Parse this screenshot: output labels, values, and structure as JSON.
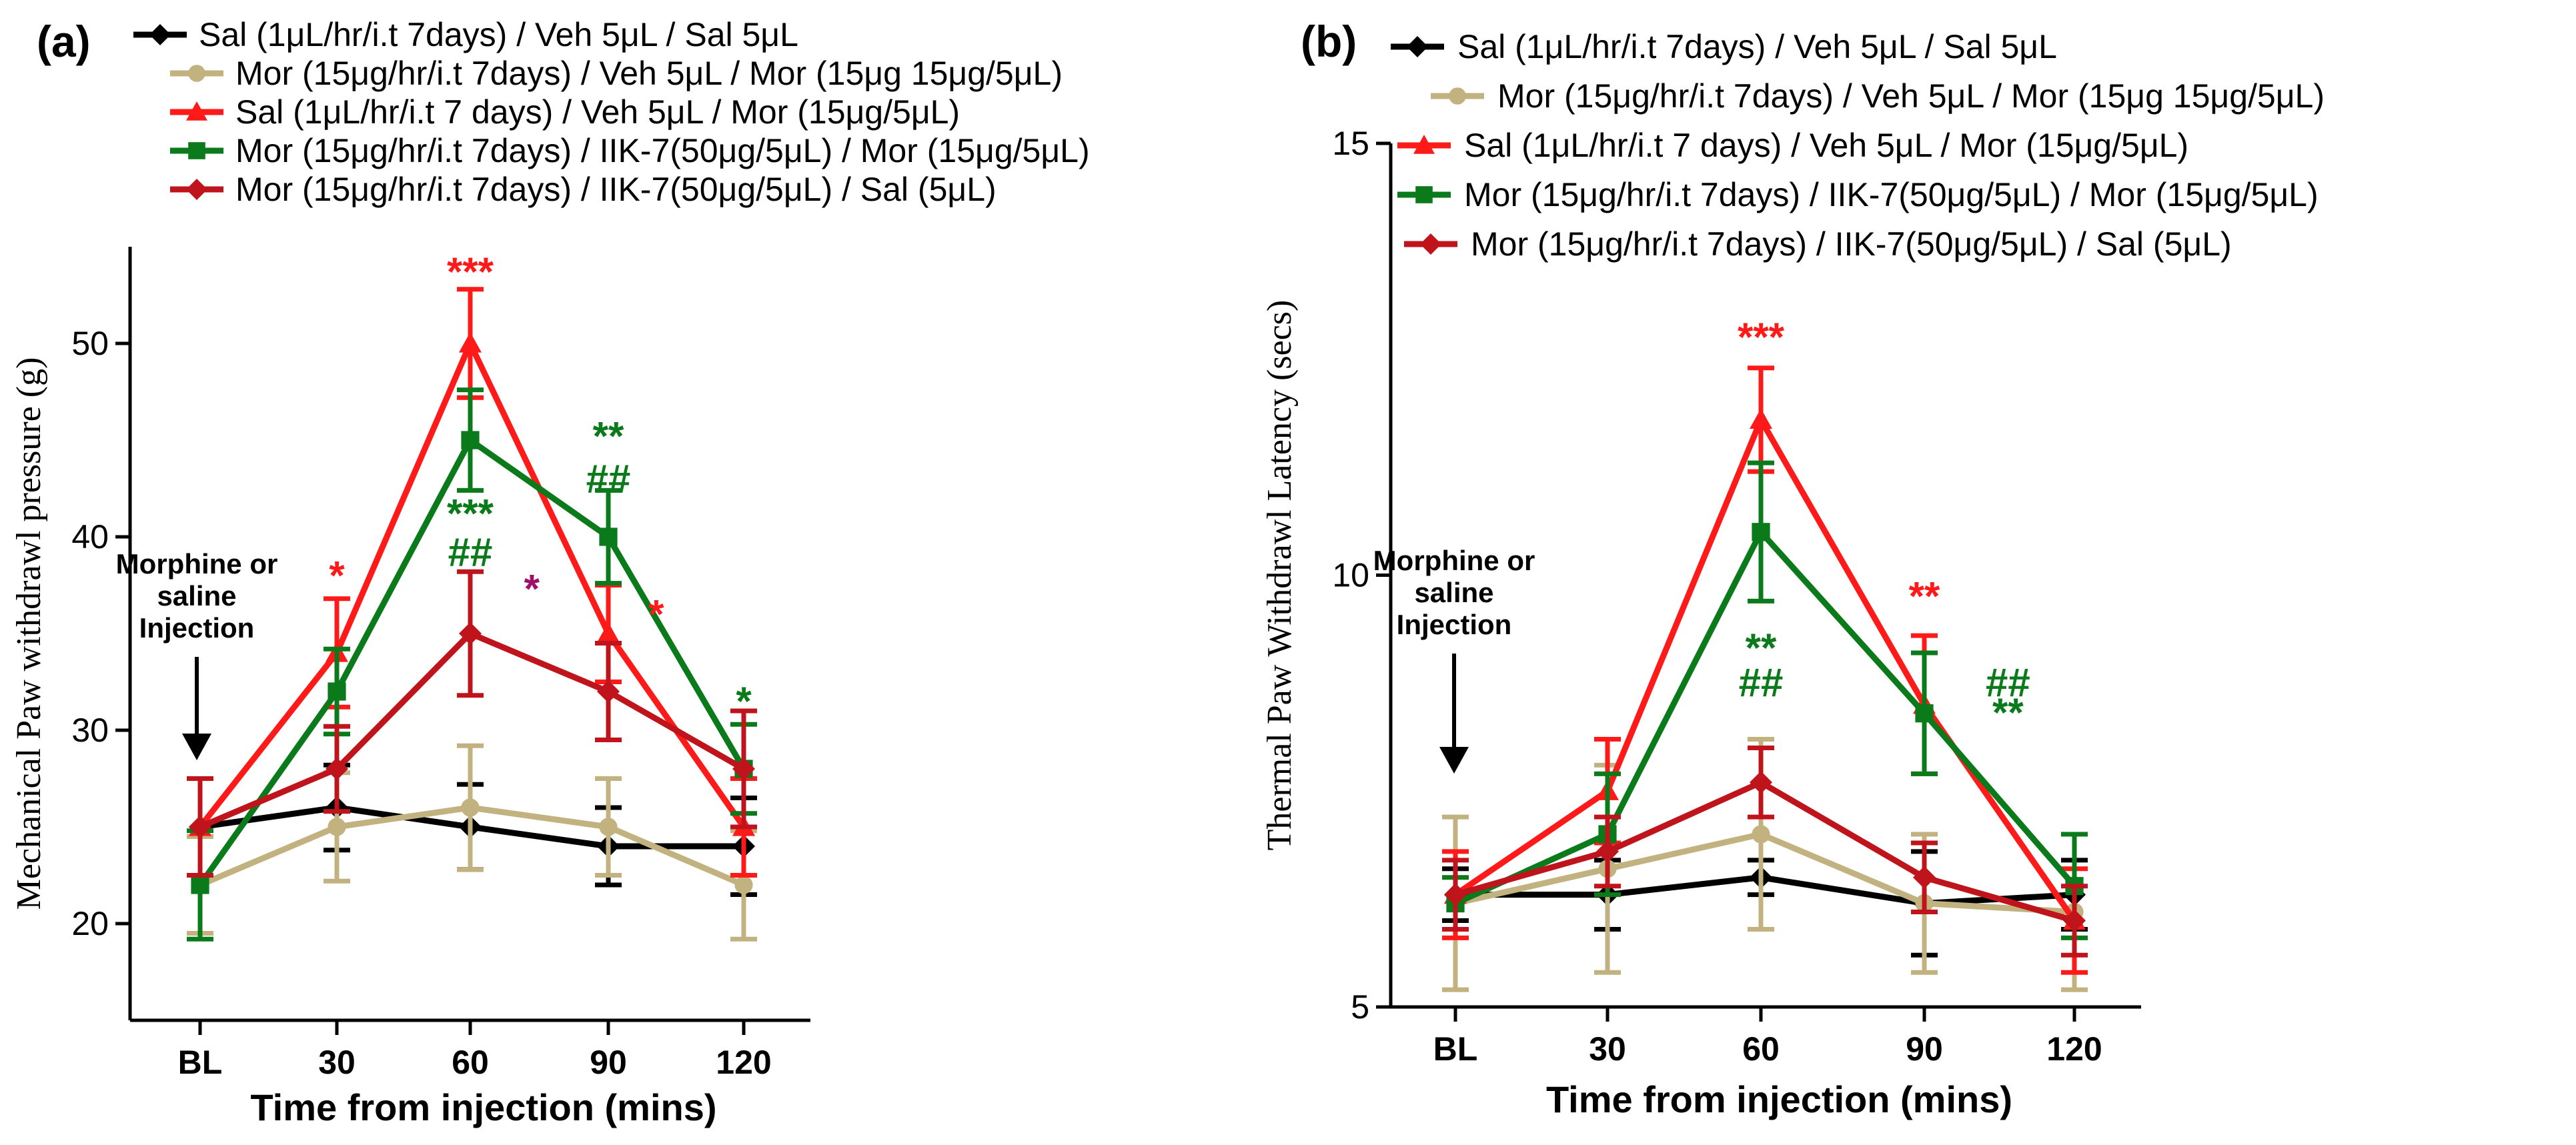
{
  "chart_data": [
    {
      "panel": "(a)",
      "type": "line",
      "xlabel": "Time from injection (mins)",
      "ylabel": "Mechanical Paw withdrawl pressure (g)",
      "categories": [
        "BL",
        "30",
        "60",
        "90",
        "120"
      ],
      "ylim": [
        15,
        55
      ],
      "yticks": [
        20,
        30,
        40,
        50
      ],
      "annotation": [
        "Morphine or",
        "saline",
        "Injection"
      ],
      "series": [
        {
          "name": "Sal (1μL/hr/i.t 7days) / Veh 5μL / Sal 5μL",
          "color": "#000000",
          "marker": "diamond",
          "values": [
            25,
            26,
            25,
            24,
            24
          ],
          "errors": [
            2.5,
            2.2,
            2.2,
            2.0,
            2.5
          ]
        },
        {
          "name": "Mor (15μg/hr/i.t 7days) / Veh 5μL / Mor (15μg 15μg/5μL)",
          "color": "#c2b280",
          "marker": "circle",
          "values": [
            22,
            25,
            26,
            25,
            22
          ],
          "errors": [
            2.5,
            2.8,
            3.2,
            2.5,
            2.8
          ]
        },
        {
          "name": "Sal (1μL/hr/i.t 7 days) / Veh 5μL / Mor (15μg/5μL)",
          "color": "#ff1a1a",
          "marker": "triangle",
          "values": [
            25,
            34,
            50,
            35,
            25
          ],
          "errors": [
            2.5,
            2.8,
            2.8,
            2.5,
            2.5
          ]
        },
        {
          "name": "Mor (15μg/hr/i.t 7days) / IIK-7(50μg/5μL) / Mor (15μg/5μL)",
          "color": "#0a7a1a",
          "marker": "square",
          "values": [
            22,
            32,
            45,
            40,
            28
          ],
          "errors": [
            2.8,
            2.2,
            2.6,
            2.4,
            2.3
          ]
        },
        {
          "name": "Mor (15μg/hr/i.t 7days) / IIK-7(50μg/5μL) / Sal (5μL)",
          "color": "#c0141c",
          "marker": "diamond",
          "values": [
            25,
            28,
            35,
            32,
            28
          ],
          "errors": [
            2.5,
            2.2,
            3.2,
            2.5,
            3.0
          ]
        }
      ],
      "significance": [
        {
          "text": "*",
          "color": "#ff1a1a",
          "category": "30",
          "y": 37.3
        },
        {
          "text": "***",
          "color": "#ff1a1a",
          "category": "60",
          "y": 53.0
        },
        {
          "text": "***",
          "color": "#0a7a1a",
          "category": "60",
          "y": 40.5
        },
        {
          "text": "##",
          "color": "#0a7a1a",
          "category": "60",
          "y": 38.5
        },
        {
          "text": "*",
          "color": "#a0106a",
          "category": "60",
          "dx": 0.45,
          "y": 36.6
        },
        {
          "text": "**",
          "color": "#0a7a1a",
          "category": "90",
          "y": 44.5
        },
        {
          "text": "##",
          "color": "#0a7a1a",
          "category": "90",
          "y": 42.3
        },
        {
          "text": "*",
          "color": "#ff1a1a",
          "category": "90",
          "dx": 0.35,
          "y": 35.3
        },
        {
          "text": "*",
          "color": "#0a7a1a",
          "category": "120",
          "y": 30.8
        }
      ]
    },
    {
      "panel": "(b)",
      "type": "line",
      "xlabel": "Time from injection (mins)",
      "ylabel": "Thermal Paw Withdrawl Latency (secs)",
      "categories": [
        "BL",
        "30",
        "60",
        "90",
        "120"
      ],
      "ylim": [
        5,
        15
      ],
      "yticks": [
        5,
        10,
        15
      ],
      "annotation": [
        "Morphine or",
        "saline",
        "Injection"
      ],
      "series": [
        {
          "name": "Sal (1μL/hr/i.t 7days) / Veh 5μL / Sal 5μL",
          "color": "#000000",
          "marker": "diamond",
          "values": [
            6.3,
            6.3,
            6.5,
            6.2,
            6.3
          ],
          "errors": [
            0.3,
            0.4,
            0.2,
            0.6,
            0.4
          ]
        },
        {
          "name": "Mor (15μg/hr/i.t 7days) / Veh 5μL / Mor (15μg 15μg/5μL)",
          "color": "#c2b280",
          "marker": "circle",
          "values": [
            6.2,
            6.6,
            7.0,
            6.2,
            6.1
          ],
          "errors": [
            1.0,
            1.2,
            1.1,
            0.8,
            0.9
          ]
        },
        {
          "name": "Sal (1μL/hr/i.t 7 days) / Veh 5μL / Mor (15μg/5μL)",
          "color": "#ff1a1a",
          "marker": "triangle",
          "values": [
            6.3,
            7.5,
            11.8,
            8.5,
            6.0
          ],
          "errors": [
            0.5,
            0.6,
            0.6,
            0.8,
            0.6
          ]
        },
        {
          "name": "Mor (15μg/hr/i.t 7days) / IIK-7(50μg/5μL) / Mor (15μg/5μL)",
          "color": "#0a7a1a",
          "marker": "square",
          "values": [
            6.2,
            7.0,
            10.5,
            8.4,
            6.4
          ],
          "errors": [
            0.3,
            0.7,
            0.8,
            0.7,
            0.6
          ]
        },
        {
          "name": "Mor (15μg/hr/i.t 7days) / IIK-7(50μg/5μL) / Sal (5μL)",
          "color": "#c0141c",
          "marker": "diamond",
          "values": [
            6.3,
            6.8,
            7.6,
            6.5,
            6.0
          ],
          "errors": [
            0.4,
            0.4,
            0.4,
            0.4,
            0.4
          ]
        }
      ],
      "significance": [
        {
          "text": "***",
          "color": "#ff1a1a",
          "category": "60",
          "y": 12.6
        },
        {
          "text": "**",
          "color": "#0a7a1a",
          "category": "60",
          "y": 9.0
        },
        {
          "text": "##",
          "color": "#0a7a1a",
          "category": "60",
          "y": 8.6
        },
        {
          "text": "**",
          "color": "#ff1a1a",
          "category": "90",
          "y": 9.6
        },
        {
          "text": "##",
          "color": "#0a7a1a",
          "category": "90",
          "dx": 0.55,
          "y": 8.6
        },
        {
          "text": "**",
          "color": "#0a7a1a",
          "category": "90",
          "dx": 0.55,
          "y": 8.25
        }
      ]
    }
  ]
}
